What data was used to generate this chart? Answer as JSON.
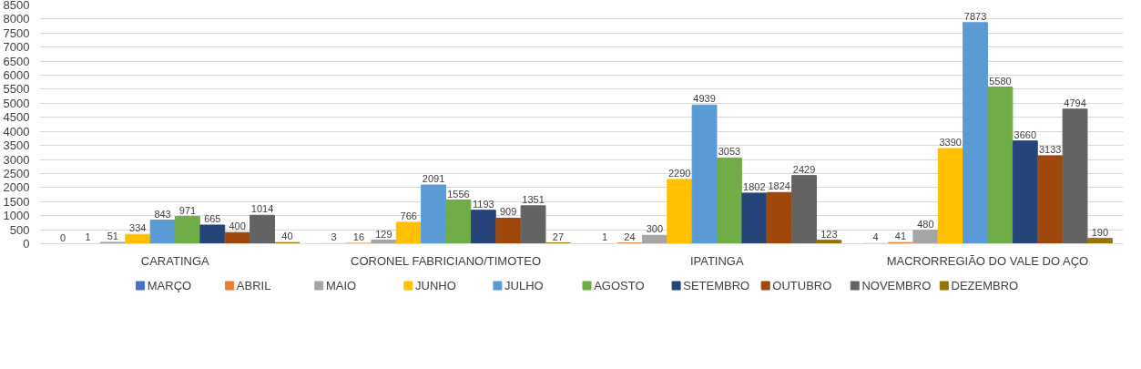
{
  "chart_data": {
    "type": "bar",
    "categories": [
      "CARATINGA",
      "CORONEL FABRICIANO/TIMOTEO",
      "IPATINGA",
      "MACRORREGIÃO DO VALE DO AÇO"
    ],
    "series": [
      {
        "name": "MARÇO",
        "color": "#4472c4",
        "values": [
          0,
          3,
          1,
          4
        ]
      },
      {
        "name": "ABRIL",
        "color": "#ed7d31",
        "values": [
          1,
          16,
          24,
          41
        ]
      },
      {
        "name": "MAIO",
        "color": "#a5a5a5",
        "values": [
          51,
          129,
          300,
          480
        ]
      },
      {
        "name": "JUNHO",
        "color": "#ffc000",
        "values": [
          334,
          766,
          2290,
          3390
        ]
      },
      {
        "name": "JULHO",
        "color": "#5b9bd5",
        "values": [
          843,
          2091,
          4939,
          7873
        ]
      },
      {
        "name": "AGOSTO",
        "color": "#70ad47",
        "values": [
          971,
          1556,
          3053,
          5580
        ]
      },
      {
        "name": "SETEMBRO",
        "color": "#264478",
        "values": [
          665,
          1193,
          1802,
          3660
        ]
      },
      {
        "name": "OUTUBRO",
        "color": "#9e480e",
        "values": [
          400,
          909,
          1824,
          3133
        ]
      },
      {
        "name": "NOVEMBRO",
        "color": "#636363",
        "values": [
          1014,
          1351,
          2429,
          4794
        ]
      },
      {
        "name": "DEZEMBRO",
        "color": "#997300",
        "values": [
          40,
          27,
          123,
          190
        ]
      }
    ],
    "ylim": [
      0,
      8500
    ],
    "yticks": [
      0,
      500,
      1000,
      1500,
      2000,
      2500,
      3000,
      3500,
      4000,
      4500,
      5000,
      5500,
      6000,
      6500,
      7000,
      7500,
      8000,
      8500
    ],
    "grid": "y",
    "legend": "bottom",
    "data_labels": true
  }
}
